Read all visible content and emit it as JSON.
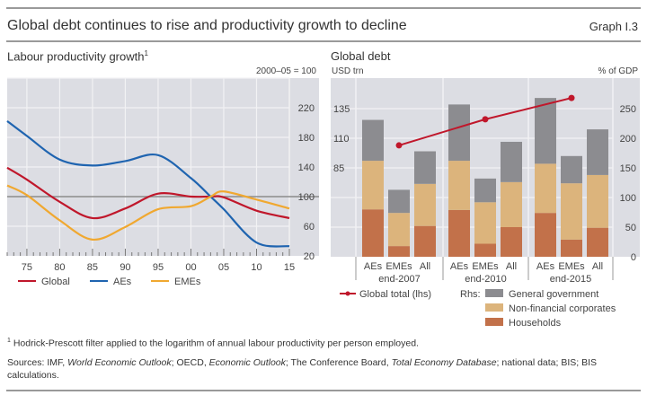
{
  "header": {
    "title": "Global debt continues to rise and productivity growth to decline",
    "graph_number": "Graph I.3"
  },
  "footnotes": {
    "note1_marker": "1",
    "note1": "Hodrick-Prescott filter applied to the logarithm of annual labour productivity per person employed.",
    "sources_parts": [
      {
        "text": "Sources: IMF, ",
        "italic": false
      },
      {
        "text": "World Economic Outlook",
        "italic": true
      },
      {
        "text": "; OECD, ",
        "italic": false
      },
      {
        "text": "Economic Outlook",
        "italic": true
      },
      {
        "text": "; The Conference Board, ",
        "italic": false
      },
      {
        "text": "Total Economy Database",
        "italic": true
      },
      {
        "text": "; national data; BIS; BIS calculations.",
        "italic": false
      }
    ]
  },
  "colors": {
    "global": "#c0172b",
    "aes": "#1f64b0",
    "emes": "#f0a830",
    "gov": "#8c8c90",
    "nfc": "#dcb47c",
    "households": "#c2714a",
    "plot_bg": "#dcdde3",
    "grid": "#f2f2f4",
    "baseline": "#8a8a8a"
  },
  "chart_data": [
    {
      "type": "line",
      "title": "Labour productivity growth",
      "title_footnote": "1",
      "unit_label": "2000–05 = 100",
      "x": [
        1972,
        1975,
        1980,
        1985,
        1990,
        1995,
        2000,
        2003,
        2005,
        2010,
        2015
      ],
      "xticks": [
        1975,
        1980,
        1985,
        1990,
        1995,
        2000,
        2005,
        2010,
        2015
      ],
      "xtick_labels": [
        "75",
        "80",
        "85",
        "90",
        "95",
        "00",
        "05",
        "10",
        "15"
      ],
      "xlim": [
        1972,
        2015
      ],
      "ylim": [
        20,
        260
      ],
      "yticks": [
        20,
        60,
        100,
        140,
        180,
        220
      ],
      "ytick_labels": [
        "20",
        "60",
        "100",
        "140",
        "180",
        "220"
      ],
      "y_axis_side": "right",
      "reference_line": 100,
      "grid": true,
      "series": [
        {
          "name": "Global",
          "color_key": "global",
          "values": [
            139,
            123,
            93,
            71,
            84,
            104,
            100,
            100,
            99,
            81,
            71
          ]
        },
        {
          "name": "AEs",
          "color_key": "aes",
          "values": [
            202,
            182,
            150,
            142,
            148,
            156,
            125,
            100,
            83,
            38,
            33
          ]
        },
        {
          "name": "EMEs",
          "color_key": "emes",
          "values": [
            115,
            102,
            68,
            42,
            59,
            83,
            87,
            100,
            107,
            96,
            84
          ]
        }
      ],
      "legend": [
        "Global",
        "AEs",
        "EMEs"
      ],
      "legend_position": "bottom"
    },
    {
      "type": "bar",
      "stacked": true,
      "title": "Global debt",
      "left_unit": "USD trn",
      "right_unit": "% of GDP",
      "groups": [
        "end-2007",
        "end-2010",
        "end-2015"
      ],
      "categories": [
        "AEs",
        "EMEs",
        "All"
      ],
      "right_ylim": [
        0,
        270
      ],
      "right_yticks": [
        0,
        50,
        100,
        150,
        200,
        250
      ],
      "left_ylim": [
        10,
        145
      ],
      "left_yticks": [
        85,
        110,
        135
      ],
      "grid": true,
      "series": [
        {
          "name": "Households",
          "axis": "rhs",
          "color_key": "households",
          "values": [
            [
              80,
              18,
              52
            ],
            [
              79,
              22,
              50
            ],
            [
              74,
              29,
              49
            ]
          ]
        },
        {
          "name": "Non-financial corporates",
          "axis": "rhs",
          "color_key": "nfc",
          "values": [
            [
              82,
              56,
              71
            ],
            [
              83,
              70,
              76
            ],
            [
              83,
              95,
              89
            ]
          ]
        },
        {
          "name": "General government",
          "axis": "rhs",
          "color_key": "gov",
          "values": [
            [
              69,
              39,
              55
            ],
            [
              95,
              40,
              68
            ],
            [
              111,
              46,
              77
            ]
          ]
        }
      ],
      "line_series": {
        "name": "Global total (lhs)",
        "axis": "lhs",
        "color_key": "global",
        "values": [
          104,
          126,
          144
        ]
      },
      "legend": {
        "line_label": "Global total (lhs)",
        "rhs_prefix": "Rhs:",
        "bar_labels": [
          "General government",
          "Non-financial corporates",
          "Households"
        ]
      },
      "legend_position": "bottom"
    }
  ]
}
